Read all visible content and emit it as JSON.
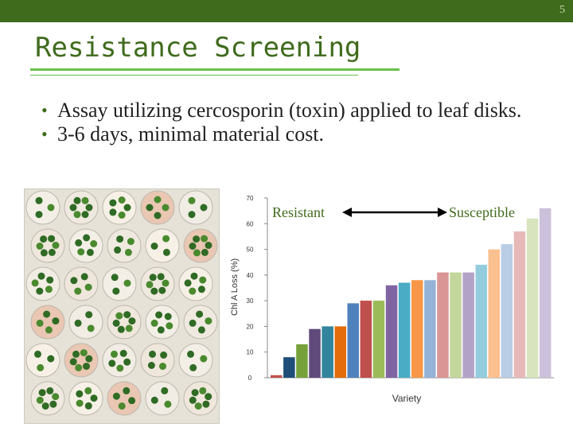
{
  "slide": {
    "number": "5",
    "title": "Resistance Screening",
    "bullets": [
      "Assay utilizing cercosporin (toxin) applied to leaf disks.",
      "3-6 days, minimal material cost."
    ],
    "colors": {
      "topbar": "#3f6b1c",
      "accent": "#6abf4b",
      "title": "#3f6b1c"
    }
  },
  "photo": {
    "description_icon": "leaf-disk-petri-dishes-photo"
  },
  "chart_data": {
    "type": "bar",
    "xlabel": "Variety",
    "ylabel": "Chl A Loss (%)",
    "ylim": [
      0,
      70
    ],
    "yticks": [
      0,
      10,
      20,
      30,
      40,
      50,
      60,
      70
    ],
    "annotation_left": "Resistant",
    "annotation_right": "Susceptible",
    "values": [
      1,
      8,
      13,
      19,
      20,
      20,
      29,
      30,
      30,
      36,
      37,
      38,
      38,
      41,
      41,
      41,
      44,
      50,
      52,
      57,
      62,
      66
    ],
    "colors": [
      "#c0504d",
      "#1f4e79",
      "#76a13a",
      "#604a7b",
      "#31859c",
      "#e46c0a",
      "#4f81bd",
      "#c0504d",
      "#9bbb59",
      "#8064a2",
      "#4bacc6",
      "#f79646",
      "#95b3d7",
      "#d99694",
      "#c3d69b",
      "#b3a2c7",
      "#93cddd",
      "#fac090",
      "#b9cde5",
      "#e6b9b8",
      "#d7e4bd",
      "#ccc1da"
    ]
  }
}
